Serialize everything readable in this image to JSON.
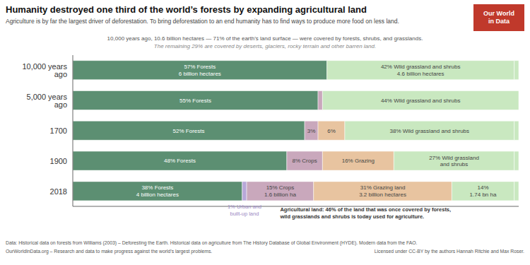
{
  "chart_data": {
    "type": "bar",
    "orientation": "horizontal",
    "stacked": true,
    "grid": false,
    "data_labels": true,
    "tick_labels": "y",
    "title": "Humanity destroyed one third of the world’s forests by expanding agricultural land",
    "subtitle": "Agriculture is by far the largest driver of deforestation. To bring deforestation to an end humanity has to find ways to produce more food on less land.",
    "notes": [
      "10,000 years ago, 10.6 billion hectares — 71% of the earth’s land surface — were covered by forests, shrubs, and grasslands.",
      "The remaining 29% are covered by deserts, glaciers, rocky terrain and other barren land."
    ],
    "annotations": [
      {
        "text": "1% Urban and\nbuilt-up land",
        "color": "#9b89c4"
      },
      {
        "text": "Agricultural land: 46% of the land that was once covered by forests,\nwild grasslands and shrubs is today used for agriculture.",
        "color": "#333333"
      }
    ],
    "footer": [
      "Data: Historical data on forests from Williams (2003) – Deforesting the Earth. Historical data on agriculture from The History Database of Global Environment (HYDE). Modern data from the FAO.",
      "OurWorldInData.org – Research and data to make progress against the world’s largest problems.",
      "Licensed under CC-BY by the authors Hannah Ritchie and Max Roser."
    ],
    "logo_text": [
      "Our World",
      "in Data"
    ],
    "logo_color": "#c0392b",
    "categories": [
      "10,000 years ago",
      "5,000 years ago",
      "1700",
      "1900",
      "2018"
    ],
    "xlim": [
      0,
      100
    ],
    "series": [
      {
        "color": "#5c8f72",
        "values": [
          57,
          55,
          52,
          48,
          38
        ],
        "value_labels": [
          "57% Forests\n6 billion hectares",
          "55% Forests",
          "52% Forests",
          "48% Forests",
          "38% Forests\n4 billion hectares"
        ]
      },
      {
        "color": "#b8a8d8",
        "values": [
          null,
          null,
          null,
          null,
          1
        ]
      },
      {
        "color": "#c9a8bc",
        "values": [
          null,
          1,
          3,
          8,
          15
        ],
        "value_labels": [
          null,
          null,
          "3%",
          "8% Crops",
          "15% Crops\n1.6 billion ha"
        ]
      },
      {
        "color": "#e8c4a0",
        "values": [
          null,
          null,
          6,
          16,
          31
        ],
        "value_labels": [
          null,
          null,
          "6%",
          "16% Grazing",
          "31% Grazing land\n3.2 billion hectares"
        ]
      },
      {
        "color": "#c9e8c0",
        "values": [
          42,
          44,
          38,
          27,
          14
        ],
        "value_labels": [
          "42% Wild grassland and shrubs\n4.6 billion hectares",
          "44% Wild grassland and shrubs",
          "38% Wild grassland and shrubs",
          "27% Wild grassland\nand shrubs",
          "14%\n1.74 bn ha"
        ]
      },
      {
        "color": "#c9e8c0",
        "values": [
          1,
          null,
          1,
          1,
          1
        ]
      }
    ]
  }
}
